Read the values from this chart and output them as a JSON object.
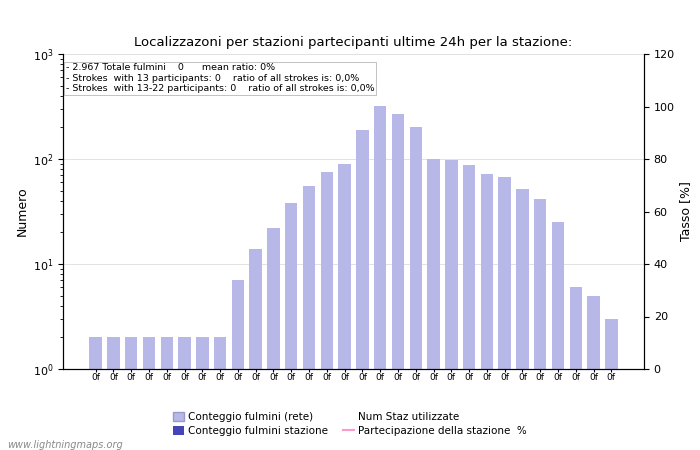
{
  "title": "Localizzazoni per stazioni partecipanti ultime 24h per la stazione:",
  "ylabel_left": "Numero",
  "ylabel_right": "Tasso [%]",
  "annotation_lines": [
    "- 2.967 Totale fulmini    0      mean ratio: 0%",
    "- Strokes  with 13 participants: 0    ratio of all strokes is: 0,0%",
    "- Strokes  with 13-22 participants: 0    ratio of all strokes is: 0,0%"
  ],
  "num_bars": 30,
  "bar_values": [
    2,
    2,
    2,
    2,
    2,
    2,
    2,
    2,
    7,
    14,
    22,
    38,
    55,
    75,
    90,
    190,
    320,
    270,
    200,
    100,
    97,
    88,
    72,
    68,
    52,
    42,
    25,
    6,
    5,
    3
  ],
  "bar_color_light": "#b8b8e8",
  "bar_color_dark": "#4444bb",
  "ylim_left": [
    1,
    1000
  ],
  "ylim_right": [
    0,
    120
  ],
  "right_yticks": [
    0,
    20,
    40,
    60,
    80,
    100,
    120
  ],
  "grid_color": "#dddddd",
  "background_color": "#ffffff",
  "legend_labels": [
    "Conteggio fulmini (rete)",
    "Conteggio fulmini stazione",
    "Num Staz utilizzate",
    "Partecipazione della stazione  %"
  ],
  "legend_colors_patch": [
    "#b8b8e8",
    "#4444bb"
  ],
  "legend_line_color": "#ff99cc",
  "watermark": "www.lightningmaps.org"
}
